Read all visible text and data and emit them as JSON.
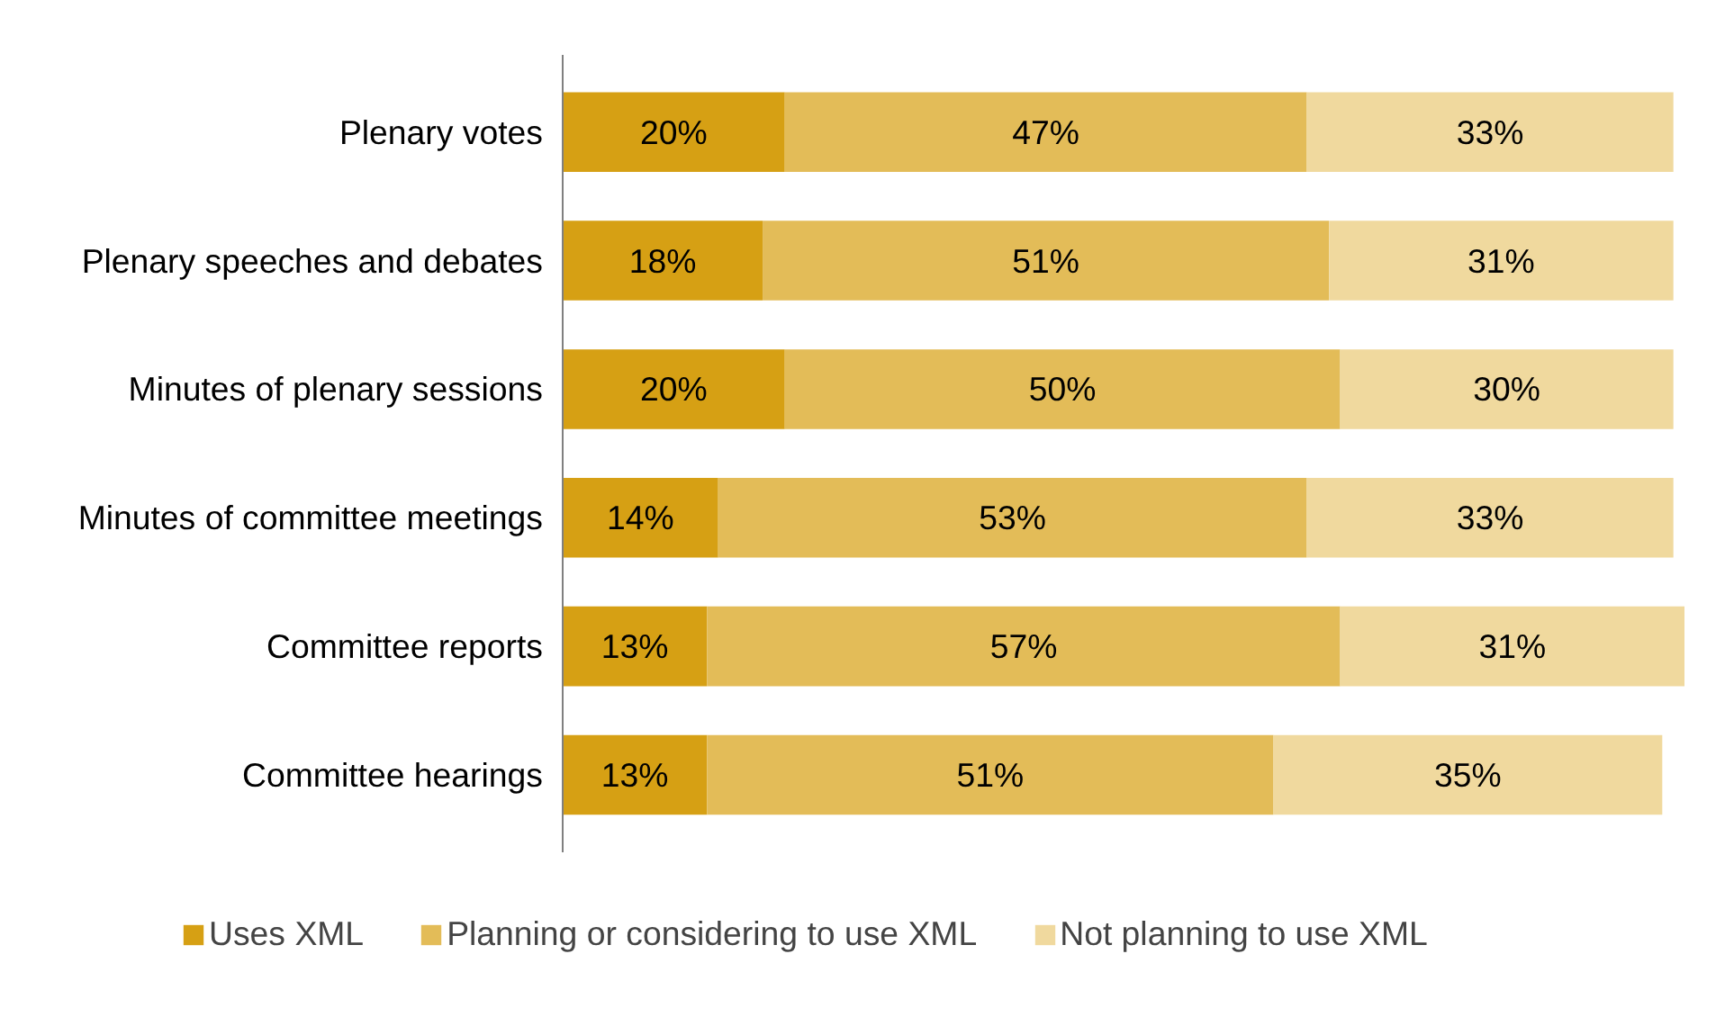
{
  "chart_data": {
    "type": "bar",
    "orientation": "horizontal",
    "stacked": true,
    "legend": "bottom",
    "tick_labels": "y",
    "categories": [
      "Plenary votes",
      "Plenary speeches and debates",
      "Minutes of plenary sessions",
      "Minutes of committee meetings",
      "Committee reports",
      "Committee hearings"
    ],
    "series": [
      {
        "name": "Uses XML",
        "color": "#d6a014",
        "values": [
          20,
          18,
          20,
          14,
          13,
          13
        ],
        "value_labels": [
          "20%",
          "18%",
          "20%",
          "14%",
          "13%",
          "13%"
        ]
      },
      {
        "name": "Planning or considering to use XML",
        "color": "#e3bc58",
        "values": [
          47,
          51,
          50,
          53,
          57,
          51
        ],
        "value_labels": [
          "47%",
          "51%",
          "50%",
          "53%",
          "57%",
          "51%"
        ]
      },
      {
        "name": "Not planning to use XML",
        "color": "#f0d99e",
        "values": [
          33,
          31,
          30,
          33,
          31,
          35
        ],
        "value_labels": [
          "33%",
          "31%",
          "30%",
          "33%",
          "31%",
          "35%"
        ]
      }
    ]
  }
}
